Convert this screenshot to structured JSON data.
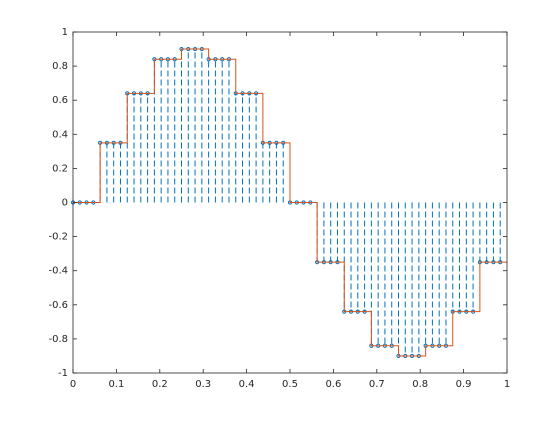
{
  "chart_data": {
    "type": "stem",
    "xlim": [
      0,
      1
    ],
    "ylim": [
      -1,
      1
    ],
    "xticks": [
      0,
      0.1,
      0.2,
      0.3,
      0.4,
      0.5,
      0.6,
      0.7,
      0.8,
      0.9,
      1
    ],
    "yticks": [
      -1,
      -0.8,
      -0.6,
      -0.4,
      -0.2,
      0,
      0.2,
      0.4,
      0.6,
      0.8,
      1
    ],
    "series": [
      {
        "type": "stem",
        "color": "#0072bd",
        "x": [
          0,
          0.015625,
          0.03125,
          0.046875,
          0.0625,
          0.078125,
          0.09375,
          0.109375,
          0.125,
          0.140625,
          0.15625,
          0.171875,
          0.1875,
          0.203125,
          0.21875,
          0.234375,
          0.25,
          0.265625,
          0.28125,
          0.296875,
          0.3125,
          0.328125,
          0.34375,
          0.359375,
          0.375,
          0.390625,
          0.40625,
          0.421875,
          0.4375,
          0.453125,
          0.46875,
          0.484375,
          0.5,
          0.515625,
          0.53125,
          0.546875,
          0.5625,
          0.578125,
          0.59375,
          0.609375,
          0.625,
          0.640625,
          0.65625,
          0.671875,
          0.6875,
          0.703125,
          0.71875,
          0.734375,
          0.75,
          0.765625,
          0.78125,
          0.796875,
          0.8125,
          0.828125,
          0.84375,
          0.859375,
          0.875,
          0.890625,
          0.90625,
          0.921875,
          0.9375,
          0.953125,
          0.96875,
          0.984375
        ],
        "values": [
          0,
          0,
          0,
          0,
          0.35,
          0.35,
          0.35,
          0.35,
          0.64,
          0.64,
          0.64,
          0.64,
          0.84,
          0.84,
          0.84,
          0.84,
          0.9,
          0.9,
          0.9,
          0.9,
          0.84,
          0.84,
          0.84,
          0.84,
          0.64,
          0.64,
          0.64,
          0.64,
          0.35,
          0.35,
          0.35,
          0.35,
          0,
          0,
          0,
          0,
          -0.35,
          -0.35,
          -0.35,
          -0.35,
          -0.64,
          -0.64,
          -0.64,
          -0.64,
          -0.84,
          -0.84,
          -0.84,
          -0.84,
          -0.9,
          -0.9,
          -0.9,
          -0.9,
          -0.84,
          -0.84,
          -0.84,
          -0.84,
          -0.64,
          -0.64,
          -0.64,
          -0.64,
          -0.35,
          -0.35,
          -0.35,
          -0.35
        ]
      },
      {
        "type": "stairs",
        "color": "#d95319",
        "x": [
          0,
          0.0625,
          0.125,
          0.1875,
          0.25,
          0.3125,
          0.375,
          0.4375,
          0.5,
          0.5625,
          0.625,
          0.6875,
          0.75,
          0.8125,
          0.875,
          0.9375
        ],
        "values": [
          0,
          0.35,
          0.64,
          0.84,
          0.9,
          0.84,
          0.64,
          0.35,
          0,
          -0.35,
          -0.64,
          -0.84,
          -0.9,
          -0.84,
          -0.64,
          -0.35
        ]
      }
    ]
  }
}
